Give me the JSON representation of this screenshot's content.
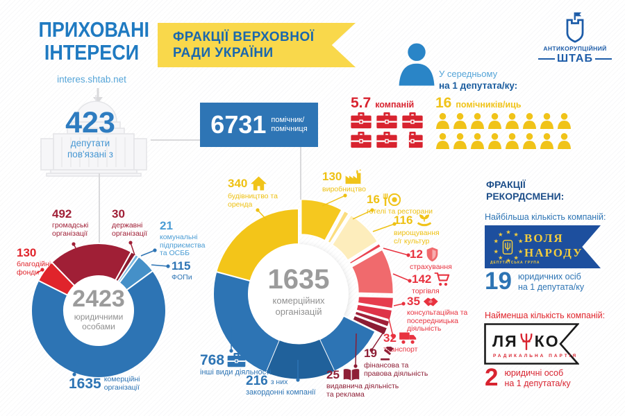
{
  "header": {
    "logo_line1": "ПРИХОВАНІ",
    "logo_line2": "ІНТЕРЕСИ",
    "website": "interes.shtab.net",
    "banner_line1": "ФРАКЦІЇ ВЕРХОВНОЇ",
    "banner_line2": "РАДИ УКРАЇНИ",
    "org_line1": "АНТИКОРУПЦІЙНИЙ",
    "org_line2": "ШТАБ",
    "average_line1": "У середньому",
    "average_line2": "на 1 депутата/ку:"
  },
  "stats": {
    "companies": {
      "value": "5.7",
      "label": "компаній",
      "icon": "briefcase-icon",
      "icon_count": 6
    },
    "assistants": {
      "value": "16",
      "label": "помічників/иць",
      "icon": "person-icon",
      "icon_count": 16
    }
  },
  "deputies": {
    "value": "423",
    "label_line1": "депутати",
    "label_line2": "пов'язані з"
  },
  "assistants_total": {
    "value": "6731",
    "label_line1": "помічник/",
    "label_line2": "помічниця"
  },
  "chart_data": [
    {
      "type": "pie",
      "name": "legal-entities-donut",
      "center_value": "2423",
      "center_label_line1": "юридичними",
      "center_label_line2": "особами",
      "rotation": -44.1,
      "legend_position": "around",
      "segments": [
        {
          "id": "public-orgs",
          "value": 492,
          "label": "громадські організації",
          "color": "#a01f36"
        },
        {
          "id": "state-orgs",
          "value": 30,
          "label": "державні організації",
          "color": "#8c1b30"
        },
        {
          "id": "communal",
          "value": 21,
          "label": "комунальні підприємства та ОСББ",
          "color": "#74b7e0"
        },
        {
          "id": "fop",
          "value": 115,
          "label": "ФОПи",
          "color": "#4590c8"
        },
        {
          "id": "commercial",
          "value": 1635,
          "label": "комерційні організації",
          "color": "#2d74b4"
        },
        {
          "id": "charity",
          "value": 130,
          "label": "благодійні фонди",
          "color": "#e0242b"
        }
      ]
    },
    {
      "type": "pie",
      "name": "commercial-orgs-donut",
      "center_value": "1635",
      "center_label_line1": "комерційних",
      "center_label_line2": "організацій",
      "rotation": 0,
      "legend_position": "around",
      "segments": [
        {
          "id": "manufacturing",
          "value": 130,
          "label": "виробництво",
          "color": "#f5c81f",
          "icon": "factory-icon",
          "exploded": true
        },
        {
          "id": "hotels",
          "value": 16,
          "label": "готелі та ресторани",
          "color": "#fbdd7e",
          "icon": "restaurant-icon",
          "exploded": true
        },
        {
          "id": "agriculture",
          "value": 116,
          "label": "вирощування с/г культур",
          "color": "#fdedbc",
          "icon": "sprout-icon",
          "exploded": true
        },
        {
          "id": "insurance",
          "value": 12,
          "label": "страхування",
          "color": "#ea4350",
          "icon": "shield-icon",
          "exploded": true
        },
        {
          "id": "trade",
          "value": 142,
          "label": "торгівля",
          "color": "#f06a6d",
          "icon": "cart-icon",
          "exploded": true
        },
        {
          "id": "consulting",
          "value": 35,
          "label": "консультаційна та посередницька діяльність",
          "color": "#e63d4e",
          "icon": "handshake-icon",
          "exploded": true
        },
        {
          "id": "transport",
          "value": 32,
          "label": "транспорт",
          "color": "#de3348",
          "icon": "truck-icon",
          "exploded": true
        },
        {
          "id": "finance-legal",
          "value": 19,
          "label": "фінансова та правова діяльність",
          "color": "#a02139",
          "icon": "gavel-icon",
          "exploded": true
        },
        {
          "id": "publishing",
          "value": 25,
          "label": "видавнича діяльність та реклама",
          "color": "#8c1c33",
          "icon": "book-icon",
          "exploded": true
        },
        {
          "id": "other",
          "value": 768,
          "label": "інші види діяльності",
          "color": "#2d74b4",
          "icon": "briefcase-icon",
          "exploded": false
        },
        {
          "id": "construction",
          "value": 340,
          "label": "будівництво та оренда",
          "color": "#f3c519",
          "icon": "house-icon",
          "exploded": false
        }
      ],
      "sub_segment": {
        "id": "foreign",
        "value": 216,
        "label_inline": "з них",
        "label_below": "закордонні компанії",
        "color": "#20619b",
        "start_angle": 155
      }
    }
  ],
  "records": {
    "title_line1": "ФРАКЦІЇ",
    "title_line2": "РЕКОРДСМЕНИ:",
    "max": {
      "intro": "Найбільша кількість компаній:",
      "faction_line1": "ВОЛЯ",
      "faction_line2": "НАРОДУ",
      "faction_sub": "ДЕПУТАТСЬКА ГРУПА",
      "value": "19",
      "label_line1": "юридичних осіб",
      "label_line2": "на 1 депутата/ку"
    },
    "min": {
      "intro": "Найменша кількість компаній:",
      "faction_left": "ЛЯ",
      "faction_right": "КО",
      "faction_sub": "РАДИКАЛЬНА ПАРТІЯ",
      "value": "2",
      "label_line1": "юридичні особ",
      "label_line2": "на 1 депутата/ку"
    }
  },
  "colors": {
    "brand_blue": "#2d74b4",
    "accent_yellow": "#f0c319",
    "accent_red": "#d8232f",
    "accent_maroon": "#a01f36",
    "flag_blue": "#1d4f9e"
  }
}
